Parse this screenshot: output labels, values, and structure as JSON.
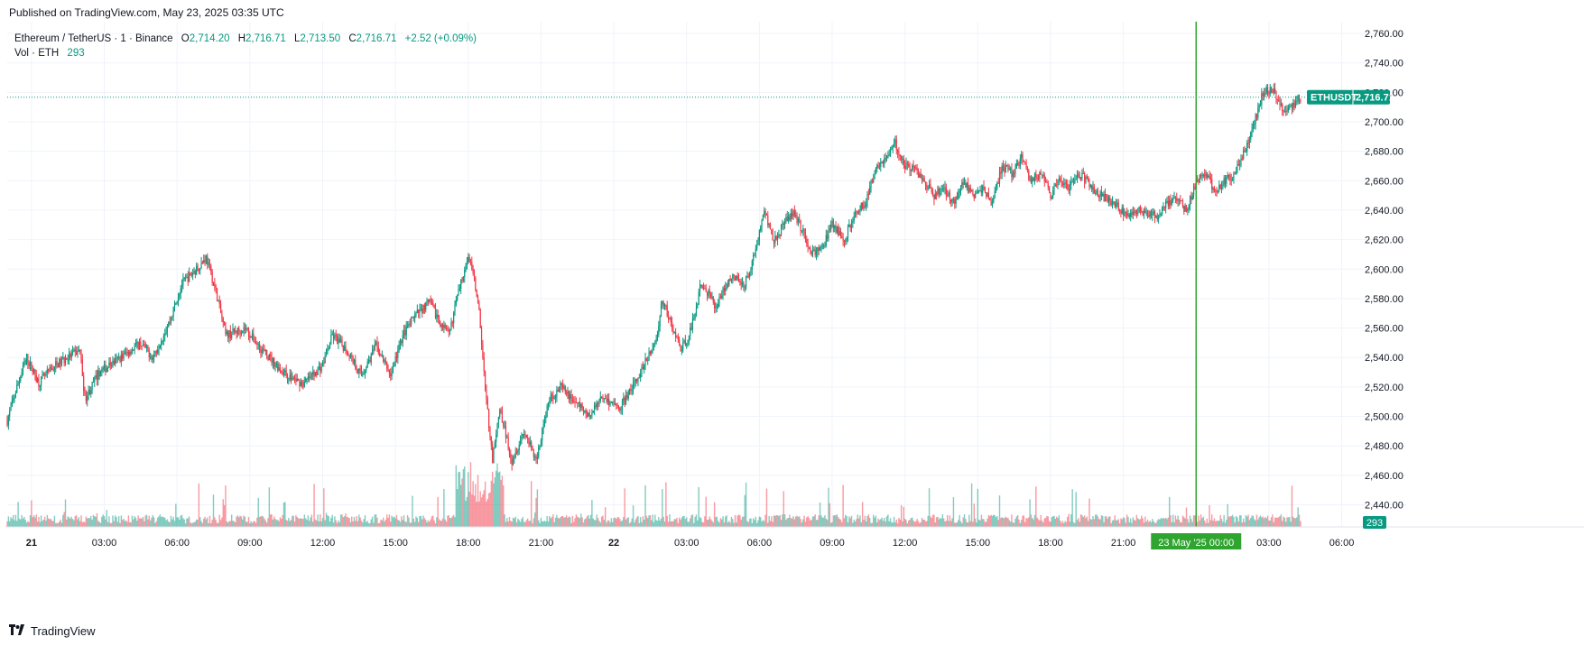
{
  "header": {
    "published": "Published on TradingView.com, May 23, 2025 03:35 UTC"
  },
  "legend": {
    "symbol": "Ethereum / TetherUS · 1 · Binance",
    "open_label": "O",
    "open": "2,714.20",
    "high_label": "H",
    "high": "2,716.71",
    "low_label": "L",
    "low": "2,713.50",
    "close_label": "C",
    "close": "2,716.71",
    "change": "+2.52 (+0.09%)",
    "vol_label": "Vol · ETH",
    "vol": "293"
  },
  "price_label": {
    "ticker": "ETHUSDT",
    "price": "2,716.71"
  },
  "volume_label": "293",
  "crosshair_label": {
    "date": "23 May '25",
    "time": "00:00"
  },
  "footer": {
    "brand": "TradingView",
    "logo_icon": "tradingview-logo-icon"
  },
  "colors": {
    "up": "#089981",
    "down": "#f23645",
    "crosshair": "#2fa52f",
    "grid": "#f0f3fa"
  },
  "chart_data": {
    "type": "candlestick",
    "title": "Ethereum / TetherUS · 1 · Binance",
    "xlabel": "",
    "ylabel": "",
    "ylim": [
      2425,
      2768
    ],
    "y_ticks": [
      2440,
      2460,
      2480,
      2500,
      2520,
      2540,
      2560,
      2580,
      2600,
      2620,
      2640,
      2660,
      2680,
      2700,
      2720,
      2740,
      2760
    ],
    "y_tick_labels": [
      "2,440.00",
      "2,460.00",
      "2,480.00",
      "2,500.00",
      "2,520.00",
      "2,540.00",
      "2,560.00",
      "2,580.00",
      "2,600.00",
      "2,620.00",
      "2,640.00",
      "2,660.00",
      "2,680.00",
      "2,700.00",
      "2,720.00",
      "2,740.00",
      "2,760.00"
    ],
    "x_range_hours": [
      -1.0,
      54.5
    ],
    "x_ticks": [
      {
        "label": "21",
        "h": 0,
        "bold": true
      },
      {
        "label": "03:00",
        "h": 3
      },
      {
        "label": "06:00",
        "h": 6
      },
      {
        "label": "09:00",
        "h": 9
      },
      {
        "label": "12:00",
        "h": 12
      },
      {
        "label": "15:00",
        "h": 15
      },
      {
        "label": "18:00",
        "h": 18
      },
      {
        "label": "21:00",
        "h": 21
      },
      {
        "label": "22",
        "h": 24,
        "bold": true
      },
      {
        "label": "03:00",
        "h": 27
      },
      {
        "label": "06:00",
        "h": 30
      },
      {
        "label": "09:00",
        "h": 33
      },
      {
        "label": "12:00",
        "h": 36
      },
      {
        "label": "15:00",
        "h": 39
      },
      {
        "label": "18:00",
        "h": 42
      },
      {
        "label": "21:00",
        "h": 45
      },
      {
        "label": "03:00",
        "h": 51
      },
      {
        "label": "06:00",
        "h": 54
      }
    ],
    "crosshair_hour": 48,
    "last_price": 2716.71,
    "price_path": [
      [
        -1.0,
        2497
      ],
      [
        -0.6,
        2520
      ],
      [
        -0.2,
        2540
      ],
      [
        0.3,
        2523
      ],
      [
        1.0,
        2535
      ],
      [
        2.0,
        2545
      ],
      [
        2.2,
        2512
      ],
      [
        2.8,
        2530
      ],
      [
        3.5,
        2538
      ],
      [
        4.5,
        2550
      ],
      [
        5.0,
        2540
      ],
      [
        5.7,
        2565
      ],
      [
        6.2,
        2590
      ],
      [
        6.8,
        2600
      ],
      [
        7.2,
        2608
      ],
      [
        7.6,
        2585
      ],
      [
        8.0,
        2555
      ],
      [
        8.8,
        2560
      ],
      [
        9.5,
        2545
      ],
      [
        10.5,
        2528
      ],
      [
        11.2,
        2522
      ],
      [
        12.0,
        2535
      ],
      [
        12.4,
        2555
      ],
      [
        13.0,
        2545
      ],
      [
        13.6,
        2528
      ],
      [
        14.2,
        2548
      ],
      [
        14.8,
        2528
      ],
      [
        15.3,
        2555
      ],
      [
        15.8,
        2568
      ],
      [
        16.4,
        2578
      ],
      [
        16.8,
        2565
      ],
      [
        17.2,
        2555
      ],
      [
        17.6,
        2585
      ],
      [
        18.0,
        2610
      ],
      [
        18.4,
        2580
      ],
      [
        18.7,
        2520
      ],
      [
        19.0,
        2470
      ],
      [
        19.3,
        2505
      ],
      [
        19.8,
        2470
      ],
      [
        20.3,
        2490
      ],
      [
        20.8,
        2470
      ],
      [
        21.3,
        2510
      ],
      [
        21.8,
        2520
      ],
      [
        22.4,
        2510
      ],
      [
        23.0,
        2500
      ],
      [
        23.5,
        2515
      ],
      [
        24.2,
        2505
      ],
      [
        24.8,
        2520
      ],
      [
        25.4,
        2540
      ],
      [
        25.8,
        2555
      ],
      [
        26.0,
        2580
      ],
      [
        26.4,
        2560
      ],
      [
        26.8,
        2545
      ],
      [
        27.2,
        2560
      ],
      [
        27.6,
        2590
      ],
      [
        28.2,
        2575
      ],
      [
        28.8,
        2595
      ],
      [
        29.4,
        2590
      ],
      [
        29.8,
        2610
      ],
      [
        30.2,
        2640
      ],
      [
        30.6,
        2620
      ],
      [
        31.0,
        2630
      ],
      [
        31.4,
        2640
      ],
      [
        31.8,
        2625
      ],
      [
        32.2,
        2610
      ],
      [
        32.6,
        2615
      ],
      [
        33.0,
        2630
      ],
      [
        33.5,
        2620
      ],
      [
        34.0,
        2640
      ],
      [
        34.4,
        2645
      ],
      [
        34.8,
        2670
      ],
      [
        35.2,
        2675
      ],
      [
        35.6,
        2685
      ],
      [
        36.0,
        2670
      ],
      [
        36.4,
        2668
      ],
      [
        36.8,
        2660
      ],
      [
        37.2,
        2650
      ],
      [
        37.6,
        2655
      ],
      [
        38.0,
        2645
      ],
      [
        38.4,
        2660
      ],
      [
        38.8,
        2650
      ],
      [
        39.2,
        2655
      ],
      [
        39.6,
        2645
      ],
      [
        40.0,
        2670
      ],
      [
        40.4,
        2665
      ],
      [
        40.8,
        2675
      ],
      [
        41.2,
        2660
      ],
      [
        41.6,
        2665
      ],
      [
        42.0,
        2650
      ],
      [
        42.4,
        2660
      ],
      [
        42.8,
        2655
      ],
      [
        43.2,
        2665
      ],
      [
        43.6,
        2658
      ],
      [
        44.0,
        2650
      ],
      [
        44.4,
        2648
      ],
      [
        44.8,
        2642
      ],
      [
        45.2,
        2635
      ],
      [
        45.6,
        2640
      ],
      [
        46.0,
        2638
      ],
      [
        46.4,
        2635
      ],
      [
        46.8,
        2645
      ],
      [
        47.2,
        2648
      ],
      [
        47.6,
        2640
      ],
      [
        48.0,
        2660
      ],
      [
        48.4,
        2665
      ],
      [
        48.8,
        2652
      ],
      [
        49.2,
        2660
      ],
      [
        49.6,
        2665
      ],
      [
        50.0,
        2680
      ],
      [
        50.4,
        2700
      ],
      [
        50.8,
        2722
      ],
      [
        51.2,
        2720
      ],
      [
        51.6,
        2708
      ],
      [
        52.0,
        2712
      ],
      [
        52.3,
        2716.71
      ]
    ]
  }
}
